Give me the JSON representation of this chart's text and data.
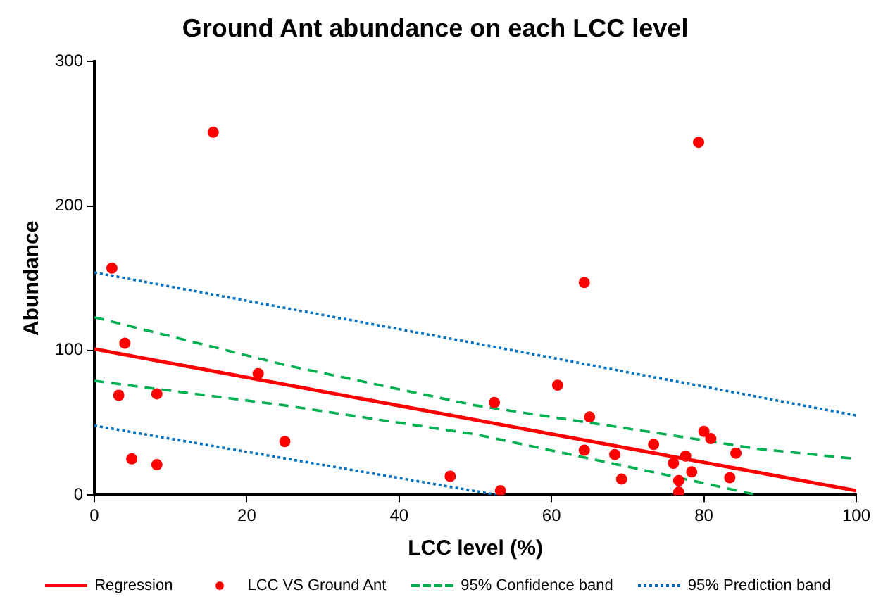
{
  "chart_data": {
    "type": "scatter",
    "title": "Ground Ant abundance on each LCC level",
    "xlabel": "LCC level (%)",
    "ylabel": "Abundance",
    "xlim": [
      0,
      100
    ],
    "xticks": [
      0,
      20,
      40,
      60,
      80,
      100
    ],
    "ylim": [
      0,
      300
    ],
    "yticks": [
      0,
      100,
      200,
      300
    ],
    "grid": false,
    "legend": "bottom",
    "marker": "circle",
    "series": [
      {
        "name": "Regression",
        "type": "line",
        "color": "#ff0000",
        "line_style": "solid",
        "marker": "none",
        "x": [
          0,
          100
        ],
        "values": [
          101,
          3
        ]
      },
      {
        "name": "LCC VS Ground Ant",
        "type": "scatter",
        "color": "#ff0000",
        "x": [
          2.3,
          4.0,
          3.2,
          4.9,
          8.2,
          8.2,
          15.6,
          21.5,
          25,
          46.7,
          53.3,
          52.5,
          60.8,
          64.3,
          65,
          64.3,
          68.3,
          69.2,
          73.4,
          76,
          77.6,
          76.7,
          76.7,
          78.4,
          79.3,
          80,
          80.9,
          84.2,
          83.4
        ],
        "values": [
          157,
          105,
          69,
          25,
          70,
          21,
          251,
          84,
          37,
          13,
          3,
          64,
          76,
          147,
          54,
          31,
          28,
          11,
          35,
          22,
          27,
          10,
          2,
          16,
          244,
          44,
          39,
          29,
          12
        ]
      },
      {
        "name": "95% Confidence band",
        "type": "line",
        "color": "#00b050",
        "line_style": "dashed",
        "marker": "none",
        "x": [
          0,
          25,
          50,
          75,
          87,
          100
        ],
        "values": [
          123,
          90,
          62,
          42,
          32,
          25
        ]
      },
      {
        "type": "line",
        "color": "#00b050",
        "line_style": "dashed",
        "marker": "none",
        "x": [
          0,
          25,
          50,
          75,
          87
        ],
        "values": [
          79,
          62,
          42,
          14,
          0
        ]
      },
      {
        "name": "95% Prediction band",
        "type": "line",
        "color": "#0070c0",
        "line_style": "dotted",
        "marker": "none",
        "x": [
          0,
          53,
          100
        ],
        "values": [
          154,
          102,
          55
        ]
      },
      {
        "type": "line",
        "color": "#0070c0",
        "line_style": "dotted",
        "marker": "none",
        "x": [
          0,
          53
        ],
        "values": [
          48,
          0
        ]
      }
    ]
  }
}
